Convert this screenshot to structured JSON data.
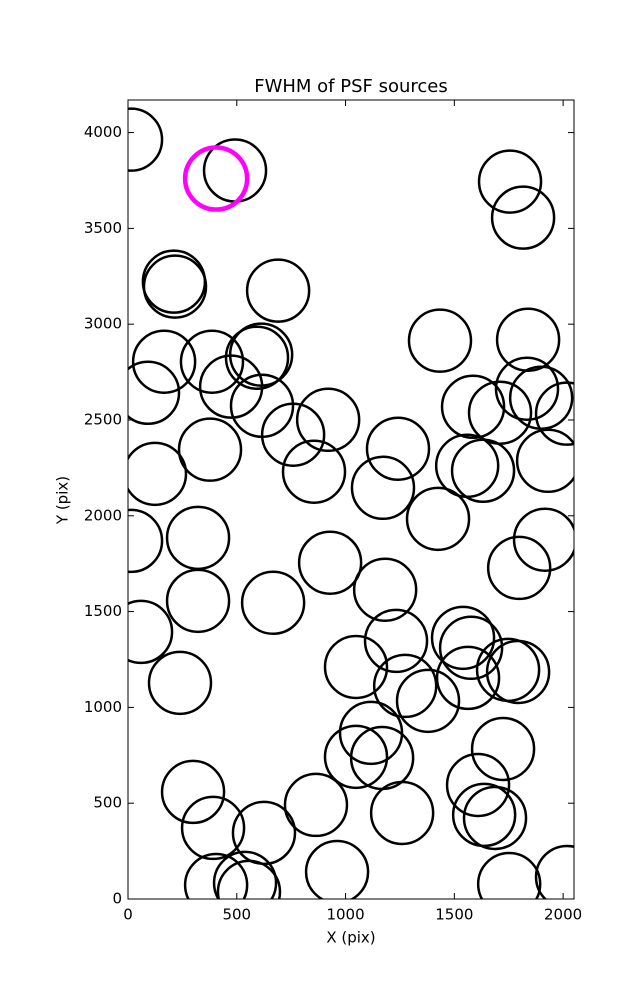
{
  "chart_data": {
    "type": "scatter",
    "title": "FWHM of PSF sources",
    "x_label": "X (pix)",
    "y_label": "Y (pix)",
    "xlim": [
      0,
      2050
    ],
    "ylim": [
      0,
      4170
    ],
    "xticks": [
      0,
      500,
      1000,
      1500,
      2000
    ],
    "yticks": [
      0,
      500,
      1000,
      1500,
      2000,
      2500,
      3000,
      3500,
      4000
    ],
    "grid": false,
    "series": [
      {
        "color": "#000000",
        "x": [
          14,
          492,
          1756,
          1816,
          211,
          216,
          690,
          1839,
          1434,
          166,
          386,
          612,
          593,
          92,
          474,
          1834,
          1899,
          1586,
          1710,
          616,
          2018,
          920,
          759,
          377,
          1241,
          124,
          855,
          1559,
          1632,
          1931,
          1172,
          1425,
          14,
          322,
          1917,
          929,
          1798,
          1182,
          60,
          322,
          667,
          1232,
          1540,
          1577,
          1048,
          239,
          1747,
          1793,
          1563,
          1274,
          1379,
          1117,
          1048,
          1168,
          1724,
          299,
          1609,
          864,
          1637,
          1687,
          391,
          625,
          1260,
          538,
          405,
          556,
          961,
          1752,
          2018
        ],
        "values": [
          3963,
          3802,
          3744,
          3556,
          3222,
          3196,
          3175,
          2919,
          2914,
          2804,
          2804,
          2841,
          2825,
          2642,
          2674,
          2663,
          2616,
          2569,
          2538,
          2574,
          2533,
          2501,
          2423,
          2345,
          2350,
          2219,
          2230,
          2261,
          2235,
          2287,
          2146,
          1984,
          1869,
          1885,
          1875,
          1755,
          1728,
          1614,
          1394,
          1556,
          1546,
          1347,
          1363,
          1311,
          1211,
          1128,
          1196,
          1185,
          1154,
          1112,
          1034,
          867,
          742,
          736,
          783,
          559,
          595,
          491,
          439,
          423,
          371,
          345,
          449,
          84,
          73,
          37,
          141,
          78,
          115
        ]
      },
      {
        "color": "#ff00ff",
        "x": [
          405
        ],
        "values": [
          3760
        ]
      }
    ]
  }
}
